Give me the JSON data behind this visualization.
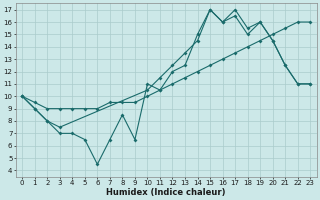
{
  "xlabel": "Humidex (Indice chaleur)",
  "bg_color": "#cce8e8",
  "grid_color": "#aacccc",
  "line_color": "#1a6b6b",
  "xlim": [
    -0.5,
    23.5
  ],
  "ylim": [
    3.5,
    17.5
  ],
  "xticks": [
    0,
    1,
    2,
    3,
    4,
    5,
    6,
    7,
    8,
    9,
    10,
    11,
    12,
    13,
    14,
    15,
    16,
    17,
    18,
    19,
    20,
    21,
    22,
    23
  ],
  "yticks": [
    4,
    5,
    6,
    7,
    8,
    9,
    10,
    11,
    12,
    13,
    14,
    15,
    16,
    17
  ],
  "line1_x": [
    0,
    1,
    2,
    3,
    4,
    5,
    6,
    7,
    8,
    9,
    10,
    11,
    12,
    13,
    14,
    15,
    16,
    17,
    18,
    19,
    20,
    21,
    22,
    23
  ],
  "line1_y": [
    10,
    9,
    8,
    7,
    7,
    6.5,
    4.5,
    6.5,
    8.5,
    6.5,
    11,
    10.5,
    12,
    12.5,
    15,
    17,
    16,
    17,
    15.5,
    16,
    14.5,
    12.5,
    11,
    11
  ],
  "line2_x": [
    0,
    1,
    2,
    3,
    4,
    5,
    6,
    7,
    8,
    9,
    10,
    11,
    12,
    13,
    14,
    15,
    16,
    17,
    18,
    19,
    20,
    21,
    22,
    23
  ],
  "line2_y": [
    10,
    9.5,
    9,
    9,
    9,
    9,
    9,
    9.5,
    9.5,
    9.5,
    10,
    10.5,
    11,
    11.5,
    12,
    12.5,
    13,
    13.5,
    14,
    14.5,
    15,
    15.5,
    16,
    16
  ],
  "line3_x": [
    0,
    1,
    2,
    3,
    10,
    11,
    12,
    13,
    14,
    15,
    16,
    17,
    18,
    19,
    20,
    21,
    22,
    23
  ],
  "line3_y": [
    10,
    9,
    8,
    7.5,
    10.5,
    11.5,
    12.5,
    13.5,
    14.5,
    17,
    16,
    16.5,
    15,
    16,
    14.5,
    12.5,
    11,
    11
  ],
  "xlabel_fontsize": 6,
  "tick_fontsize": 5
}
